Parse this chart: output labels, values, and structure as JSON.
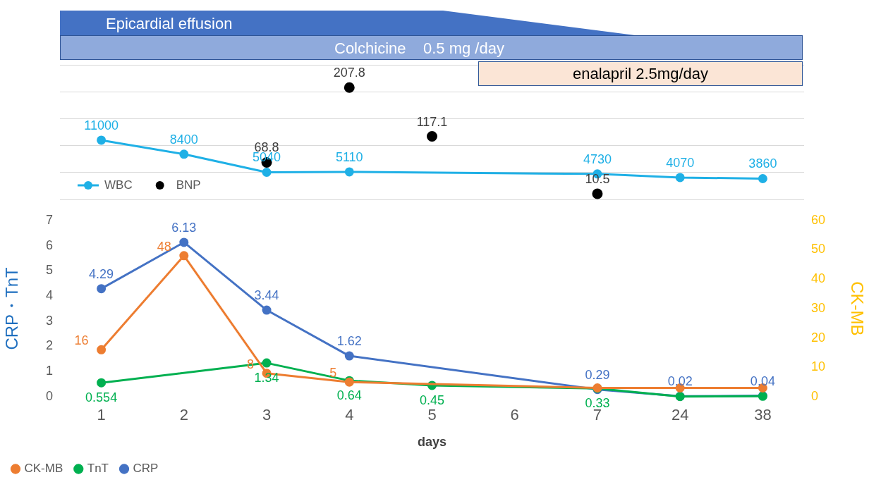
{
  "chart_data": [
    {
      "type": "line",
      "categories": [
        "1",
        "2",
        "3",
        "4",
        "5",
        "6",
        "7",
        "24",
        "38"
      ],
      "series": [
        {
          "name": "WBC",
          "color": "#1fb0e6",
          "values": [
            11000,
            8400,
            5040,
            5110,
            null,
            null,
            4730,
            4070,
            3860
          ],
          "value_labels": [
            "11000",
            "8400",
            "5040",
            "5110",
            null,
            null,
            "4730",
            "4070",
            "3860"
          ]
        },
        {
          "name": "BNP",
          "type": "scatter",
          "axis": "y2",
          "color": "#000000",
          "values": [
            null,
            null,
            68.8,
            207.8,
            117.1,
            null,
            10.5,
            null,
            null
          ],
          "value_labels": [
            null,
            null,
            "68.8",
            "207.8",
            "117.1",
            null,
            "10.5",
            null,
            null
          ]
        }
      ],
      "ylim": [
        0,
        25000
      ],
      "yticks": [
        {
          "value": 0,
          "label": null
        },
        {
          "value": 5000,
          "label": null
        },
        {
          "value": 10000,
          "label": null
        },
        {
          "value": 15000,
          "label": null
        },
        {
          "value": 20000,
          "label": null
        },
        {
          "value": 25000,
          "label": null
        }
      ],
      "y2lim": [
        0,
        250
      ],
      "tick_labels": false,
      "grid": "y",
      "legend": "bottom left",
      "marker": "circle",
      "annotations": [
        "Epicardial effusion",
        "Colchicine    0.5 mg /day",
        "enalapril 2.5mg/day"
      ]
    },
    {
      "type": "line",
      "categories": [
        "1",
        "2",
        "3",
        "4",
        "5",
        "6",
        "7",
        "24",
        "38"
      ],
      "xlabel": "days",
      "ylabel": "CRP・TnT",
      "y2label": "CK-MB",
      "series": [
        {
          "name": "CRP",
          "color": "#4472c4",
          "values": [
            4.29,
            6.13,
            3.44,
            1.62,
            null,
            null,
            0.29,
            0.02,
            0.04
          ],
          "value_labels": [
            "4.29",
            "6.13",
            "3.44",
            "1.62",
            null,
            null,
            "0.29",
            "0.02",
            "0.04"
          ]
        },
        {
          "name": "TnT",
          "color": "#00b050",
          "values": [
            0.554,
            null,
            1.34,
            0.64,
            0.45,
            null,
            0.33,
            0.01,
            0.02
          ],
          "value_labels": [
            "0.554",
            null,
            "1.34",
            "0.64",
            "0.45",
            null,
            "0.33",
            null,
            null
          ]
        },
        {
          "name": "CK-MB",
          "axis": "y2",
          "color": "#ed7d31",
          "values": [
            16,
            48,
            8,
            5,
            null,
            null,
            3,
            3,
            3
          ],
          "value_labels": [
            "16",
            "48",
            "8",
            "5",
            null,
            null,
            null,
            null,
            null
          ]
        }
      ],
      "ylim": [
        0,
        7
      ],
      "yticks": [
        0,
        1,
        2,
        3,
        4,
        5,
        6,
        7
      ],
      "y2lim": [
        0,
        60
      ],
      "y2ticks": [
        0,
        10,
        20,
        30,
        40,
        50,
        60
      ],
      "grid": false,
      "legend": "bottom left",
      "marker": "circle"
    }
  ]
}
